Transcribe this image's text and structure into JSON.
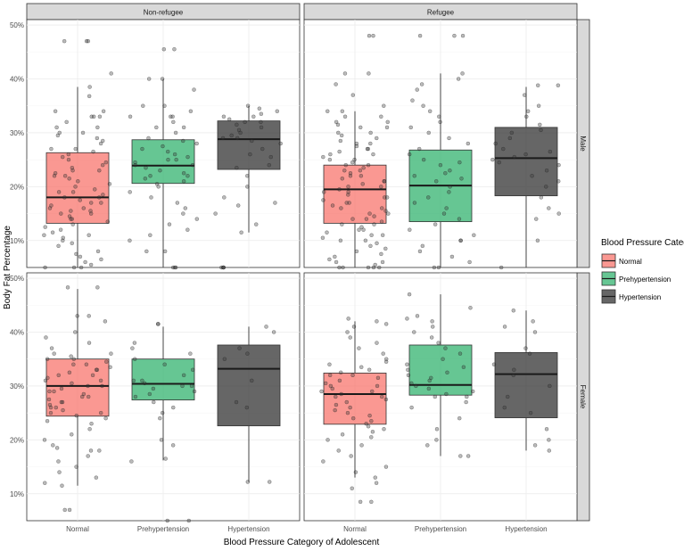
{
  "chart_data": {
    "type": "boxplot",
    "xlabel": "Blood Pressure Category of Adolescent",
    "ylabel": "Body Fat Percentage",
    "categories": [
      "Normal",
      "Prehypertension",
      "Hypertension"
    ],
    "column_facets": [
      "Non-refugee",
      "Refugee"
    ],
    "row_facets": [
      "Male",
      "Female"
    ],
    "y_ticks": [
      10,
      20,
      30,
      40,
      50
    ],
    "y_tick_labels": [
      "10%",
      "20%",
      "30%",
      "40%",
      "50%"
    ],
    "rows": [
      {
        "ylim": [
          5,
          51
        ]
      },
      {
        "ylim": [
          5,
          51
        ]
      }
    ],
    "legend": {
      "title": "Blood Pressure Category",
      "items": [
        {
          "label": "Normal",
          "color": "#f8766d"
        },
        {
          "label": "Prehypertension",
          "color": "#33b36f"
        },
        {
          "label": "Hypertension",
          "color": "#333333"
        }
      ]
    },
    "panels": [
      {
        "row": "Male",
        "col": "Non-refugee",
        "boxes": [
          {
            "category": "Normal",
            "q1": 13.2,
            "median": 18.0,
            "q3": 26.3,
            "lower": 5.0,
            "upper": 38.5
          },
          {
            "category": "Prehypertension",
            "q1": 20.6,
            "median": 23.9,
            "q3": 28.7,
            "lower": 5.0,
            "upper": 40.0
          },
          {
            "category": "Hypertension",
            "q1": 23.2,
            "median": 28.8,
            "q3": 32.2,
            "lower": 11.5,
            "upper": 35.0
          }
        ],
        "points": {
          "Normal": [
            47,
            47,
            47,
            41,
            38.5,
            36.8,
            34,
            34,
            33,
            33,
            33,
            32,
            31,
            31,
            30,
            30,
            29.5,
            29,
            28.5,
            28,
            27,
            27,
            26.5,
            26,
            25.5,
            25,
            24.5,
            24,
            23.5,
            23,
            23,
            22.5,
            22,
            22,
            21.5,
            21,
            20.5,
            20,
            19.5,
            19,
            19,
            18.5,
            18,
            18,
            17.5,
            17,
            17,
            16.5,
            16,
            16,
            15.5,
            15.5,
            15,
            15,
            14.5,
            14,
            14,
            13.5,
            13,
            12.5,
            12,
            11.5,
            11,
            11,
            10.5,
            10,
            9.5,
            9,
            8,
            7.5,
            7,
            6.5,
            6,
            5.5,
            5,
            5,
            5
          ],
          "Prehypertension": [
            45.5,
            45.5,
            40,
            40,
            38,
            35,
            35,
            34,
            33,
            33,
            33,
            32,
            31,
            31,
            30,
            29,
            28.5,
            28,
            27.5,
            27,
            26.5,
            26,
            25.5,
            25,
            25,
            24.5,
            24,
            24,
            23.5,
            23,
            22.5,
            22,
            22,
            21.5,
            21,
            20.5,
            20,
            19,
            18,
            17,
            16,
            15,
            14,
            13,
            12,
            11,
            10,
            8,
            8,
            5,
            5,
            5
          ],
          "Hypertension": [
            35,
            34.5,
            34,
            33.5,
            33,
            33,
            32.5,
            32,
            32,
            31.5,
            31,
            30.5,
            30,
            29.5,
            29,
            29,
            28.5,
            28,
            27,
            26,
            25.5,
            24,
            23.5,
            22,
            20,
            18,
            17,
            16.5,
            15,
            13,
            11.5,
            5,
            5,
            5,
            5
          ]
        }
      },
      {
        "row": "Male",
        "col": "Refugee",
        "boxes": [
          {
            "category": "Normal",
            "q1": 13.2,
            "median": 19.5,
            "q3": 24.0,
            "lower": 5.0,
            "upper": 34.0
          },
          {
            "category": "Prehypertension",
            "q1": 13.5,
            "median": 20.2,
            "q3": 26.8,
            "lower": 5.0,
            "upper": 41.0
          },
          {
            "category": "Hypertension",
            "q1": 18.3,
            "median": 25.3,
            "q3": 31.0,
            "lower": 5.0,
            "upper": 38.5
          }
        ],
        "points": {
          "Normal": [
            48,
            48,
            41,
            41,
            39,
            37,
            35,
            34,
            34,
            33,
            33,
            32,
            32,
            31.5,
            31,
            31,
            30,
            30,
            29.5,
            29,
            28.5,
            28,
            28,
            27.5,
            27,
            27,
            26.5,
            26,
            26,
            25.5,
            25,
            25,
            24.5,
            24,
            24,
            23.5,
            23,
            23,
            22.5,
            22,
            22,
            21.5,
            21,
            21,
            20.5,
            20,
            20,
            19.5,
            19,
            19,
            18.5,
            18,
            18,
            17.5,
            17,
            17,
            16.5,
            16,
            16,
            15.5,
            15,
            15,
            14.5,
            14,
            14,
            13.5,
            13,
            13,
            12.5,
            12,
            12,
            11.5,
            11,
            11,
            10.5,
            10,
            10,
            9.5,
            9,
            8.5,
            8,
            7.5,
            7,
            6.5,
            6,
            6,
            5.5,
            5,
            5,
            5,
            5,
            5
          ],
          "Prehypertension": [
            48,
            48,
            48,
            41,
            40,
            39,
            38,
            36,
            35,
            34,
            33,
            32,
            31,
            30,
            29,
            28,
            27,
            26,
            25,
            24.5,
            24,
            23,
            22.5,
            22,
            21.5,
            21,
            20,
            19,
            18,
            17,
            16,
            15,
            14,
            13,
            12,
            11,
            10,
            10,
            9,
            8,
            7,
            6,
            5,
            5
          ],
          "Hypertension": [
            38.8,
            38.8,
            37,
            35,
            34,
            33,
            31.5,
            30.5,
            30,
            29,
            28,
            27,
            26.5,
            26,
            25.5,
            25,
            24.5,
            24,
            23,
            22,
            21,
            20,
            18,
            16,
            15,
            14,
            10,
            5
          ]
        }
      },
      {
        "row": "Female",
        "col": "Non-refugee",
        "boxes": [
          {
            "category": "Normal",
            "q1": 24.4,
            "median": 30.0,
            "q3": 35.0,
            "lower": 11.5,
            "upper": 48.0
          },
          {
            "category": "Prehypertension",
            "q1": 27.4,
            "median": 30.4,
            "q3": 35.0,
            "lower": 16.2,
            "upper": 41.0
          },
          {
            "category": "Hypertension",
            "q1": 22.6,
            "median": 33.2,
            "q3": 37.6,
            "lower": 12.2,
            "upper": 41.0
          }
        ],
        "points": {
          "Normal": [
            48.3,
            48.3,
            43,
            43,
            42,
            40,
            39,
            38,
            37,
            36,
            36,
            35.5,
            35,
            35,
            34.5,
            34,
            34,
            33.5,
            33,
            33,
            32.5,
            32,
            32,
            31.5,
            31,
            31,
            30.5,
            30,
            30,
            29.5,
            29,
            29,
            28.5,
            28,
            28,
            27.5,
            27,
            27,
            26.5,
            26,
            26,
            25.5,
            25,
            25,
            24.5,
            24,
            23.5,
            23,
            22,
            21,
            20,
            19,
            18.5,
            18,
            18,
            17,
            16,
            15,
            14,
            13,
            12,
            11.5,
            7,
            7
          ],
          "Prehypertension": [
            41.5,
            41.5,
            38,
            37,
            36,
            35,
            34,
            33,
            32,
            31,
            31,
            30.5,
            30,
            30,
            29.5,
            29,
            28.5,
            28,
            27,
            26,
            25,
            24,
            20,
            19,
            16.5,
            16,
            5,
            5
          ],
          "Hypertension": [
            41,
            40,
            37,
            36,
            35,
            31,
            27,
            26,
            12.2,
            12.2
          ]
        }
      },
      {
        "row": "Female",
        "col": "Refugee",
        "boxes": [
          {
            "category": "Normal",
            "q1": 22.9,
            "median": 28.5,
            "q3": 32.4,
            "lower": 13.0,
            "upper": 42.0
          },
          {
            "category": "Prehypertension",
            "q1": 28.3,
            "median": 30.2,
            "q3": 37.6,
            "lower": 17.0,
            "upper": 47.0
          },
          {
            "category": "Hypertension",
            "q1": 24.1,
            "median": 32.2,
            "q3": 36.2,
            "lower": 18.0,
            "upper": 44.0
          }
        ],
        "points": {
          "Normal": [
            42.5,
            42,
            41.5,
            41,
            40,
            39,
            38,
            37,
            36,
            35,
            34.5,
            34,
            33.5,
            33,
            32.5,
            32,
            32,
            31.5,
            31,
            30.5,
            30,
            30,
            29.5,
            29,
            29,
            28.5,
            28,
            28,
            27.5,
            27,
            26.5,
            26,
            25.5,
            25,
            24.5,
            24,
            23.5,
            23,
            22.5,
            22,
            21.5,
            21,
            20.5,
            20,
            19,
            18,
            17,
            16,
            15,
            14,
            13,
            12,
            11,
            8.5,
            8.5
          ],
          "Prehypertension": [
            47,
            44.5,
            43,
            42.5,
            42,
            41,
            40,
            39,
            38,
            37,
            36,
            35,
            34,
            33.5,
            33,
            32.5,
            32,
            31.5,
            31,
            30.5,
            30,
            29.5,
            29,
            28.5,
            28,
            28,
            27,
            26,
            24,
            22,
            20,
            19,
            17,
            17
          ],
          "Hypertension": [
            44,
            42,
            41,
            40,
            37,
            36,
            34,
            33,
            32,
            30,
            28,
            26,
            25,
            22,
            20,
            19,
            18
          ]
        }
      }
    ]
  }
}
